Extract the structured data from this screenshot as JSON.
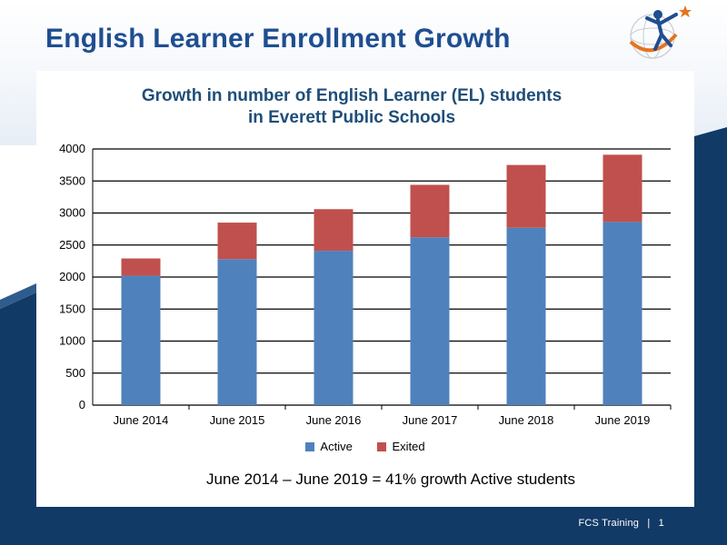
{
  "slide": {
    "title": "English Learner Enrollment Growth",
    "footer_label": "FCS Training",
    "footer_separator": "|",
    "page_number": "1"
  },
  "colors": {
    "title": "#1f4e91",
    "navy": "#123a66",
    "active": "#4f81bd",
    "exited": "#c0504d"
  },
  "chart_data": {
    "type": "bar",
    "stacked": true,
    "title_lines": [
      "Growth in number of English Learner (EL) students",
      "in Everett Public Schools"
    ],
    "categories": [
      "June 2014",
      "June 2015",
      "June 2016",
      "June 2017",
      "June 2018",
      "June 2019"
    ],
    "series": [
      {
        "name": "Active",
        "color": "#4f81bd",
        "values": [
          2020,
          2280,
          2410,
          2620,
          2770,
          2860
        ]
      },
      {
        "name": "Exited",
        "color": "#c0504d",
        "values": [
          270,
          570,
          650,
          820,
          980,
          1050
        ]
      }
    ],
    "ylim": [
      0,
      4000
    ],
    "yticks": [
      0,
      500,
      1000,
      1500,
      2000,
      2500,
      3000,
      3500,
      4000
    ],
    "grid": true,
    "legend_position": "bottom",
    "annotation": "June 2014 – June 2019 = 41% growth Active students"
  }
}
